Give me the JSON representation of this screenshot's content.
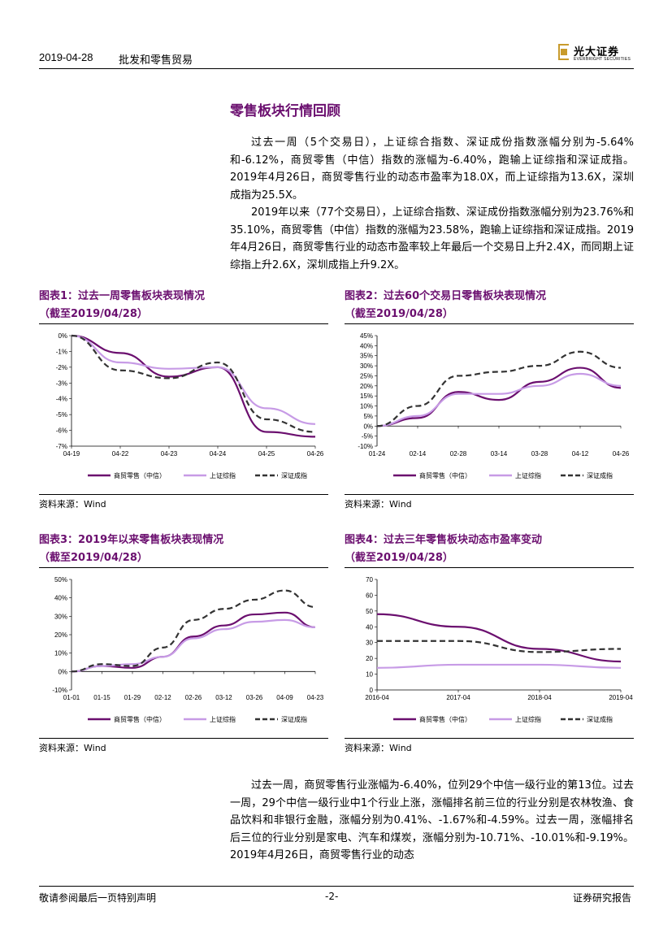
{
  "header": {
    "date": "2019-04-28",
    "industry": "批发和零售贸易",
    "logo_cn": "光大证券",
    "logo_en": "EVERBRIGHT SECURITIES"
  },
  "section_title": "零售板块行情回顾",
  "paragraphs": [
    "过去一周（5个交易日），上证综合指数、深证成份指数涨幅分别为-5.64%和-6.12%，商贸零售（中信）指数的涨幅为-6.40%，跑输上证综指和深证成指。2019年4月26日，商贸零售行业的动态市盈率为18.0X，而上证综指为13.6X，深圳成指为25.5X。",
    "2019年以来（77个交易日），上证综合指数、深证成份指数涨幅分别为23.76%和35.10%，商贸零售（中信）指数的涨幅为23.58%，跑输上证综指和深证成指。2019年4月26日，商贸零售行业的动态市盈率较上年最后一个交易日上升2.4X，而同期上证综指上升2.6X，深圳成指上升9.2X。"
  ],
  "bottom_paragraph": "过去一周，商贸零售行业涨幅为-6.40%，位列29个中信一级行业的第13位。过去一周，29个中信一级行业中1个行业上涨，涨幅排名前三位的行业分别是农林牧渔、食品饮料和非银行金融，涨幅分别为0.41%、-1.67%和-4.59%。过去一周，涨幅排名后三位的行业分别是家电、汽车和煤炭，涨幅分别为-10.71%、-10.01%和-9.19%。2019年4月26日，商贸零售行业的动态",
  "colors": {
    "retail": "#6b0f6f",
    "sse": "#c79be6",
    "szse": "#333333",
    "title": "#6b0f6f"
  },
  "figures": [
    {
      "title": "图表1：过去一周零售板块表现情况",
      "subtitle": "（截至2019/04/28）",
      "source": "资料来源：Wind"
    },
    {
      "title": "图表2：过去60个交易日零售板块表现情况",
      "subtitle": "（截至2019/04/28）",
      "source": "资料来源：Wind"
    },
    {
      "title": "图表3：2019年以来零售板块表现情况",
      "subtitle": "（截至2019/04/28）",
      "source": "资料来源：Wind"
    },
    {
      "title": "图表4：过去三年零售板块动态市盈率变动",
      "subtitle": "（截至2019/04/28）",
      "source": "资料来源：Wind"
    }
  ],
  "chart_data": [
    {
      "type": "line",
      "x": [
        "04-19",
        "04-22",
        "04-23",
        "04-24",
        "04-25",
        "04-26"
      ],
      "yticks": [
        "0%",
        "-1%",
        "-2%",
        "-3%",
        "-4%",
        "-5%",
        "-6%",
        "-7%"
      ],
      "ylim": [
        -7,
        0
      ],
      "series": [
        {
          "name": "商贸零售（中信）",
          "values": [
            0,
            -1.1,
            -2.6,
            -2.0,
            -6.1,
            -6.4
          ]
        },
        {
          "name": "上证综指",
          "values": [
            0,
            -1.7,
            -2.1,
            -2.0,
            -4.6,
            -5.6
          ]
        },
        {
          "name": "深证成指",
          "values": [
            0,
            -2.2,
            -2.7,
            -1.7,
            -5.3,
            -6.1
          ]
        }
      ]
    },
    {
      "type": "line",
      "x": [
        "01-24",
        "02-14",
        "02-28",
        "03-14",
        "03-28",
        "04-12",
        "04-26"
      ],
      "yticks": [
        "45%",
        "40%",
        "35%",
        "30%",
        "25%",
        "20%",
        "15%",
        "10%",
        "5%",
        "0%",
        "-5%",
        "-10%"
      ],
      "ylim": [
        -10,
        45
      ],
      "series": [
        {
          "name": "商贸零售（中信）",
          "values": [
            0,
            4,
            17,
            13,
            22,
            29,
            19
          ]
        },
        {
          "name": "上证综指",
          "values": [
            0,
            5,
            16,
            16,
            20,
            26,
            20
          ]
        },
        {
          "name": "深证成指",
          "values": [
            0,
            10,
            25,
            27,
            30,
            37,
            29
          ]
        }
      ]
    },
    {
      "type": "line",
      "x": [
        "01-01",
        "01-15",
        "01-29",
        "02-12",
        "02-26",
        "03-12",
        "03-26",
        "04-09",
        "04-23"
      ],
      "yticks": [
        "50%",
        "40%",
        "30%",
        "20%",
        "10%",
        "0%",
        "-10%"
      ],
      "ylim": [
        -10,
        50
      ],
      "series": [
        {
          "name": "商贸零售（中信）",
          "values": [
            0,
            3,
            2,
            8,
            19,
            25,
            31,
            32,
            24
          ]
        },
        {
          "name": "上证综指",
          "values": [
            0,
            3,
            4,
            8,
            18,
            23,
            27,
            28,
            24
          ]
        },
        {
          "name": "深证成指",
          "values": [
            0,
            4,
            3,
            13,
            28,
            34,
            39,
            44,
            35
          ]
        }
      ]
    },
    {
      "type": "line",
      "x": [
        "2016-04",
        "2017-04",
        "2018-04",
        "2019-04"
      ],
      "yticks": [
        "70",
        "60",
        "50",
        "40",
        "30",
        "20",
        "10",
        "0"
      ],
      "ylim": [
        0,
        70
      ],
      "series": [
        {
          "name": "商贸零售（中信）",
          "values": [
            48,
            40,
            26,
            18
          ]
        },
        {
          "name": "上证综指",
          "values": [
            14,
            16,
            16,
            14
          ]
        },
        {
          "name": "深证成指",
          "values": [
            31,
            31,
            24,
            26
          ]
        }
      ]
    }
  ],
  "footer": {
    "left": "敬请参阅最后一页特别声明",
    "center": "-2-",
    "right": "证券研究报告"
  }
}
